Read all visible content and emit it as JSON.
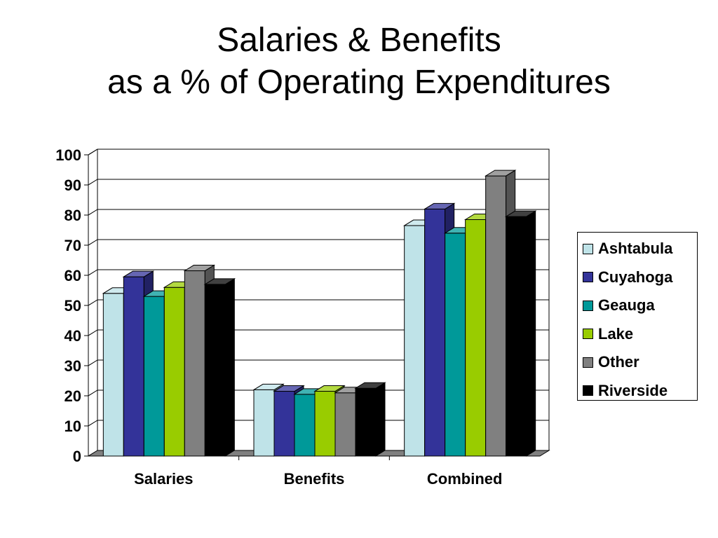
{
  "title": {
    "line1": "Salaries & Benefits",
    "line2": "as a % of Operating Expenditures"
  },
  "chart_data": {
    "type": "bar",
    "categories": [
      "Salaries",
      "Benefits",
      "Combined"
    ],
    "series": [
      {
        "name": "Ashtabula",
        "color": "#bfe3e8",
        "values": [
          54,
          22,
          76.5
        ]
      },
      {
        "name": "Cuyahoga",
        "color": "#333399",
        "values": [
          59.5,
          21.5,
          82
        ]
      },
      {
        "name": "Geauga",
        "color": "#009999",
        "values": [
          53,
          20.5,
          74
        ]
      },
      {
        "name": "Lake",
        "color": "#99cc00",
        "values": [
          56,
          21.5,
          78.5
        ]
      },
      {
        "name": "Other",
        "color": "#808080",
        "values": [
          61.5,
          21,
          93
        ]
      },
      {
        "name": "Riverside",
        "color": "#000000",
        "values": [
          57,
          22.5,
          79.5
        ]
      }
    ],
    "yticks": [
      "0",
      "10",
      "20",
      "30",
      "40",
      "50",
      "60",
      "70",
      "80",
      "90",
      "100"
    ],
    "ylim": [
      0,
      100
    ],
    "grid": true,
    "legend_position": "right",
    "three_d": true
  }
}
